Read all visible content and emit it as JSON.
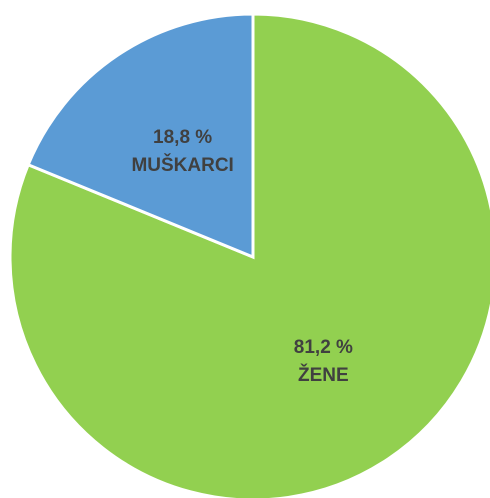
{
  "chart_data": {
    "type": "pie",
    "categories": [
      "ŽENE",
      "MUŠKARCI"
    ],
    "values": [
      81.2,
      18.8
    ],
    "value_labels": [
      "81,2 %",
      "18,8 %"
    ],
    "colors": [
      "#92d050",
      "#5b9bd5"
    ]
  }
}
